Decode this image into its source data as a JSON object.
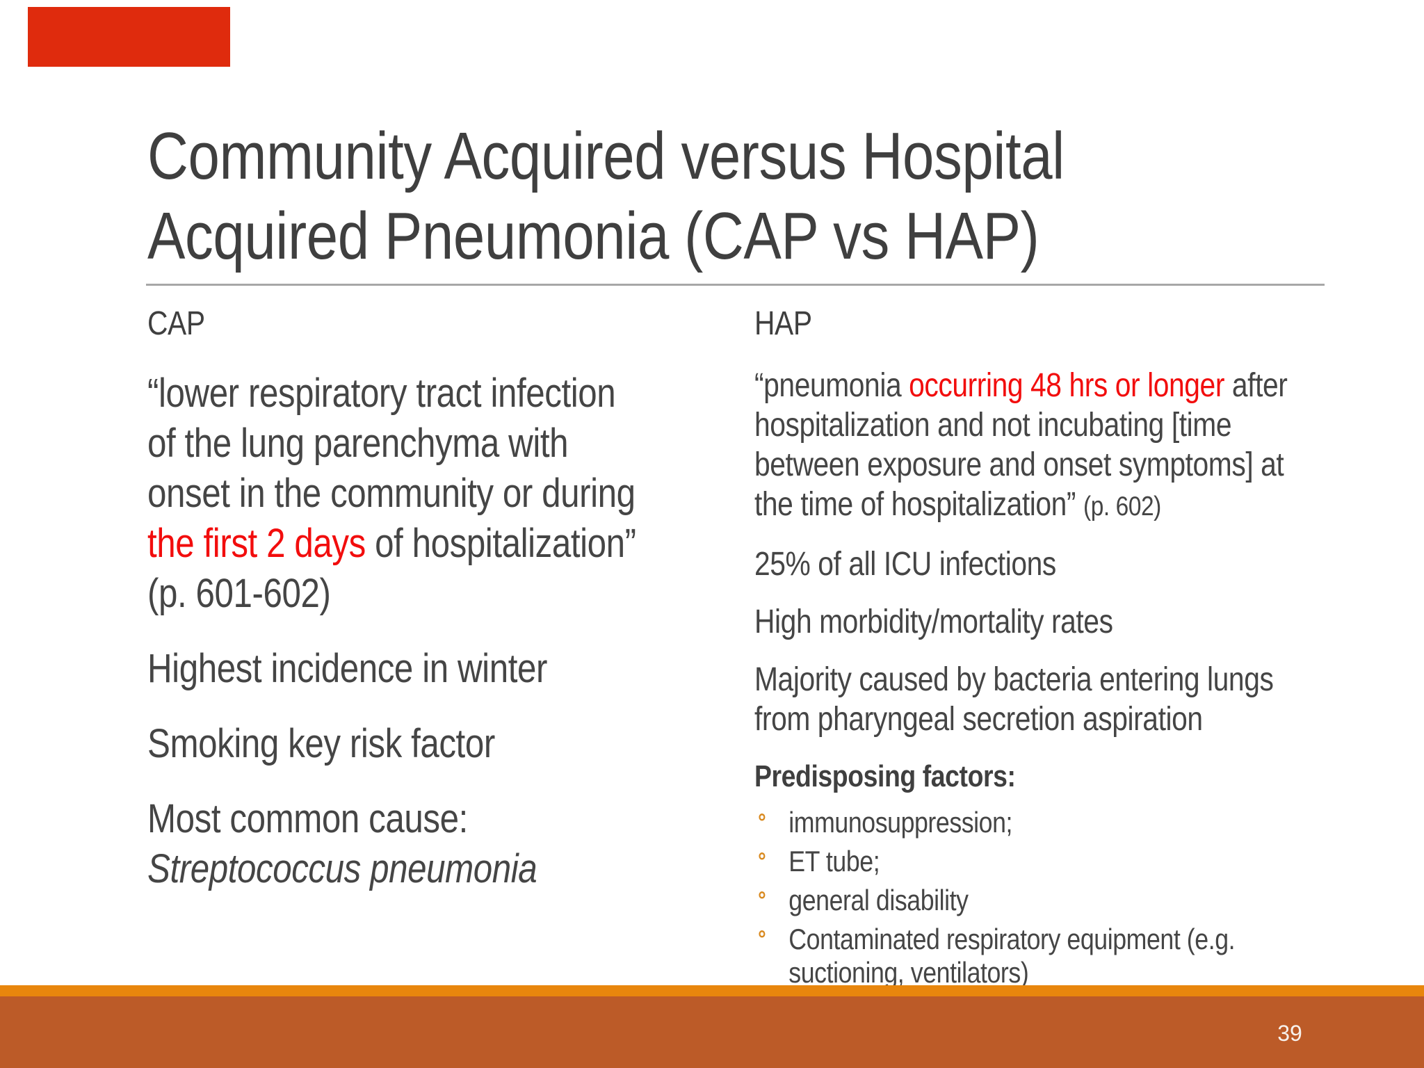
{
  "slide": {
    "title": "Community Acquired versus Hospital\nAcquired Pneumonia (CAP vs HAP)",
    "page_number": "39"
  },
  "left_column": {
    "heading": "CAP",
    "quote": {
      "pre": "“lower respiratory tract infection\nof the lung parenchyma with\nonset in the community or during\n",
      "highlight": "the first 2 days",
      "post": " of hospitalization”\n(p. 601-602)"
    },
    "points": [
      "Highest incidence in winter",
      "Smoking key risk factor"
    ],
    "cause": {
      "label": "Most common cause:",
      "species": "Streptococcus pneumonia"
    }
  },
  "right_column": {
    "heading": "HAP",
    "quote": {
      "pre": "“pneumonia ",
      "highlight": "occurring 48 hrs or longer",
      "post": " after\nhospitalization and not incubating [time\nbetween exposure and onset symptoms] at\nthe time of hospitalization” ",
      "citation": "(p. 602)"
    },
    "points": [
      "25% of all ICU infections",
      "High morbidity/mortality rates",
      "Majority caused by bacteria entering lungs\nfrom pharyngeal secretion aspiration"
    ],
    "predisposing": {
      "heading": "Predisposing factors:",
      "bullet_glyph": "°",
      "items": [
        "immunosuppression;",
        "ET tube;",
        "general disability",
        "Contaminated respiratory equipment (e.g.\nsuctioning, ventilators)"
      ]
    }
  },
  "theme": {
    "accent_block_color": "#DF2B0D",
    "highlight_text_color": "#F20D0D",
    "footer_strip_color": "#E8860D",
    "footer_bar_color": "#BC5B28",
    "bullet_marker_color": "#D98A20",
    "title_color": "#3F3F3F",
    "body_color": "#454545",
    "divider_color": "#A7A7A7"
  }
}
